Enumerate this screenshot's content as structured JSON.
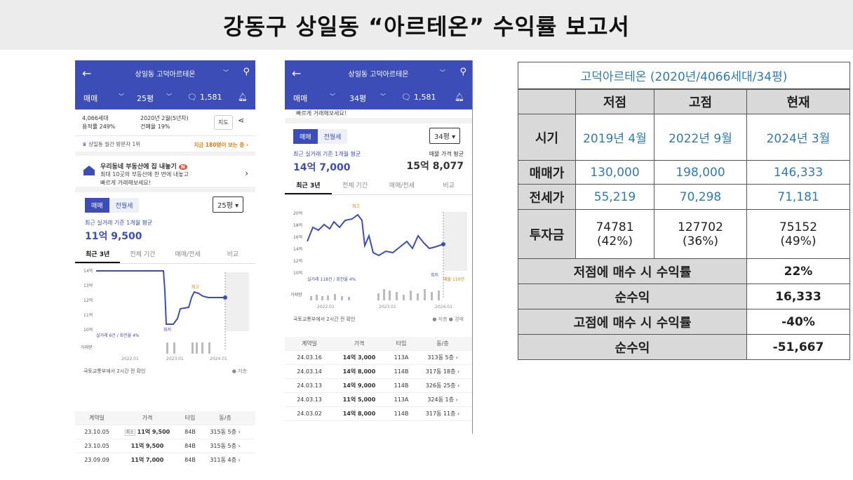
{
  "page": {
    "title": "강동구 상일동 “아르테온” 수익률 보고서"
  },
  "phone1": {
    "header": {
      "apt_name": "상일동 고덕아르테온",
      "trade": "매매",
      "size": "25평",
      "comments": "1,581"
    },
    "info": {
      "households": "4,066세대",
      "far": "용적률 249%",
      "built": "2020년 2월(5년차)",
      "bcr": "건폐율 19%",
      "map_btn": "지도"
    },
    "visitor": {
      "text": "상일동 월간 방문자 1위",
      "now": "지금 180명이 보는 중 ›"
    },
    "promo": {
      "title": "우리동네 부동산에 집 내놓기",
      "badge": "N",
      "sub1": "최대 10곳의 부동산에 한 번에 내놓고",
      "sub2": "빠르게 거래해보세요!"
    },
    "seg": {
      "on": "매매",
      "off": "전월세"
    },
    "size_select": "25평 ▾",
    "avg_label": "최근 실거래 기준 1개월 평균",
    "avg_price": "11억 9,500",
    "tabs": [
      "최근 3년",
      "전체 기간",
      "매매/전세",
      "비교"
    ],
    "chart": {
      "yticks": [
        "14억",
        "13억",
        "12억",
        "11억",
        "10억"
      ],
      "xticks": [
        "2022.01",
        "2023.01",
        "2024.01"
      ],
      "high": "최고",
      "low": "최저",
      "count": "실거래 6건 / 회전율 4%",
      "vol": "거래량"
    },
    "source": "국토교통부에서 2시간 전 확인",
    "legend": "● 저층",
    "table": {
      "headers": [
        "계약일",
        "가격",
        "타입",
        "동/층"
      ],
      "rows": [
        {
          "date": "23.10.05",
          "tag": "최소",
          "price": "11억 9,500",
          "type": "84B",
          "unit": "315동 5층"
        },
        {
          "date": "23.10.05",
          "tag": "",
          "price": "11억 9,500",
          "type": "84B",
          "unit": "315동 5층"
        },
        {
          "date": "23.09.09",
          "tag": "",
          "price": "11억 7,000",
          "type": "84B",
          "unit": "311동 4층"
        }
      ]
    }
  },
  "phone2": {
    "header": {
      "apt_name": "상일동 고덕아르테온",
      "trade": "매매",
      "size": "34평",
      "comments": "1,581"
    },
    "cut_text": "빠르게 거래해보세요!",
    "seg": {
      "on": "매매",
      "off": "전월세"
    },
    "size_select": "34평 ▾",
    "avg_label": "최근 실거래 기준 1개월 평균",
    "avg_price": "14억 7,000",
    "ask_label": "매물 가격 평균",
    "ask_price": "15억 8,077",
    "tabs": [
      "최근 3년",
      "전체 기간",
      "매매/전세",
      "비교"
    ],
    "chart": {
      "yticks": [
        "20억",
        "18억",
        "16억",
        "14억",
        "12억",
        "10억"
      ],
      "xticks": [
        "2022.01",
        "2023.01",
        "2024.01"
      ],
      "high": "최고",
      "low": "최저",
      "count": "실거래 118건 / 회전율 4%",
      "vol": "거래량",
      "listing": "매물 110건"
    },
    "source": "국토교통부에서 2시간 전 확인",
    "legend": "● 저층  ● 경매",
    "table": {
      "headers": [
        "계약일",
        "가격",
        "타입",
        "동/층"
      ],
      "rows": [
        {
          "date": "24.03.16",
          "price": "14억 3,000",
          "type": "113A",
          "unit": "313동 5층"
        },
        {
          "date": "24.03.14",
          "price": "14억 8,000",
          "type": "114B",
          "unit": "317동 18층"
        },
        {
          "date": "24.03.13",
          "price": "14억 9,000",
          "type": "114B",
          "unit": "326동 25층"
        },
        {
          "date": "24.03.13",
          "price": "11억 5,000",
          "type": "113A",
          "unit": "324동 1층"
        },
        {
          "date": "24.03.02",
          "price": "14억 8,000",
          "type": "114B",
          "unit": "317동 11층"
        }
      ]
    }
  },
  "report": {
    "header": "고덕아르테온 (2020년/4066세대/34평)",
    "cols": [
      "저점",
      "고점",
      "현재"
    ],
    "rows": [
      {
        "label": "시기",
        "vals": [
          "2019년 4월",
          "2022년 9월",
          "2024년 3월"
        ]
      },
      {
        "label": "매매가",
        "vals": [
          "130,000",
          "198,000",
          "146,333"
        ]
      },
      {
        "label": "전세가",
        "vals": [
          "55,219",
          "70,298",
          "71,181"
        ]
      },
      {
        "label": "투자금",
        "vals": [
          "74781\n(42%)",
          "127702\n(36%)",
          "75152\n(49%)"
        ]
      }
    ],
    "summary": [
      {
        "label": "저점에 매수 시 수익률",
        "val": "22%"
      },
      {
        "label": "순수익",
        "val": "16,333"
      },
      {
        "label": "고점에 매수 시 수익률",
        "val": "-40%"
      },
      {
        "label": "순수익",
        "val": "-51,667"
      }
    ]
  }
}
